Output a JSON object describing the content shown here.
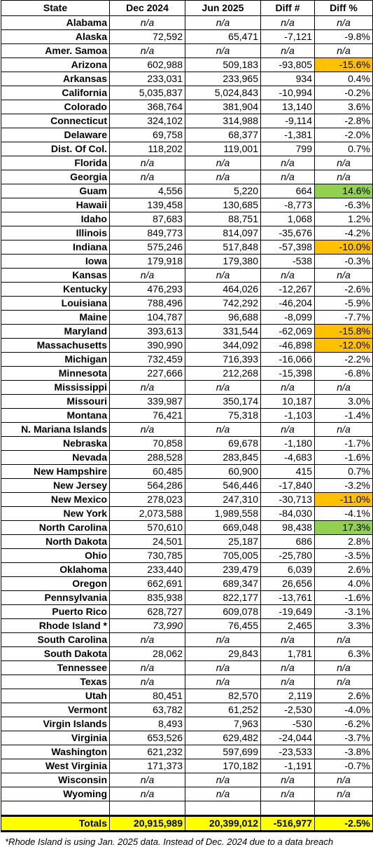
{
  "table": {
    "header": [
      "State",
      "Dec 2024",
      "Jun 2025",
      "Diff #",
      "Diff %"
    ],
    "rows": [
      [
        "Alabama",
        "n/a",
        "n/a",
        "n/a",
        "n/a"
      ],
      [
        "Alaska",
        "72,592",
        "65,471",
        "-7,121",
        "-9.8%"
      ],
      [
        "Amer. Samoa",
        "n/a",
        "n/a",
        "n/a",
        "n/a"
      ],
      [
        "Arizona",
        "602,988",
        "509,183",
        "-93,805",
        "-15.6%"
      ],
      [
        "Arkansas",
        "233,031",
        "233,965",
        "934",
        "0.4%"
      ],
      [
        "California",
        "5,035,837",
        "5,024,843",
        "-10,994",
        "-0.2%"
      ],
      [
        "Colorado",
        "368,764",
        "381,904",
        "13,140",
        "3.6%"
      ],
      [
        "Connecticut",
        "324,102",
        "314,988",
        "-9,114",
        "-2.8%"
      ],
      [
        "Delaware",
        "69,758",
        "68,377",
        "-1,381",
        "-2.0%"
      ],
      [
        "Dist. Of Col.",
        "118,202",
        "119,001",
        "799",
        "0.7%"
      ],
      [
        "Florida",
        "n/a",
        "n/a",
        "n/a",
        "n/a"
      ],
      [
        "Georgia",
        "n/a",
        "n/a",
        "n/a",
        "n/a"
      ],
      [
        "Guam",
        "4,556",
        "5,220",
        "664",
        "14.6%"
      ],
      [
        "Hawaii",
        "139,458",
        "130,685",
        "-8,773",
        "-6.3%"
      ],
      [
        "Idaho",
        "87,683",
        "88,751",
        "1,068",
        "1.2%"
      ],
      [
        "Illinois",
        "849,773",
        "814,097",
        "-35,676",
        "-4.2%"
      ],
      [
        "Indiana",
        "575,246",
        "517,848",
        "-57,398",
        "-10.0%"
      ],
      [
        "Iowa",
        "179,918",
        "179,380",
        "-538",
        "-0.3%"
      ],
      [
        "Kansas",
        "n/a",
        "n/a",
        "n/a",
        "n/a"
      ],
      [
        "Kentucky",
        "476,293",
        "464,026",
        "-12,267",
        "-2.6%"
      ],
      [
        "Louisiana",
        "788,496",
        "742,292",
        "-46,204",
        "-5.9%"
      ],
      [
        "Maine",
        "104,787",
        "96,688",
        "-8,099",
        "-7.7%"
      ],
      [
        "Maryland",
        "393,613",
        "331,544",
        "-62,069",
        "-15.8%"
      ],
      [
        "Massachusetts",
        "390,990",
        "344,092",
        "-46,898",
        "-12.0%"
      ],
      [
        "Michigan",
        "732,459",
        "716,393",
        "-16,066",
        "-2.2%"
      ],
      [
        "Minnesota",
        "227,666",
        "212,268",
        "-15,398",
        "-6.8%"
      ],
      [
        "Mississippi",
        "n/a",
        "n/a",
        "n/a",
        "n/a"
      ],
      [
        "Missouri",
        "339,987",
        "350,174",
        "10,187",
        "3.0%"
      ],
      [
        "Montana",
        "76,421",
        "75,318",
        "-1,103",
        "-1.4%"
      ],
      [
        "N. Mariana Islands",
        "n/a",
        "n/a",
        "n/a",
        "n/a"
      ],
      [
        "Nebraska",
        "70,858",
        "69,678",
        "-1,180",
        "-1.7%"
      ],
      [
        "Nevada",
        "288,528",
        "283,845",
        "-4,683",
        "-1.6%"
      ],
      [
        "New Hampshire",
        "60,485",
        "60,900",
        "415",
        "0.7%"
      ],
      [
        "New Jersey",
        "564,286",
        "546,446",
        "-17,840",
        "-3.2%"
      ],
      [
        "New Mexico",
        "278,023",
        "247,310",
        "-30,713",
        "-11.0%"
      ],
      [
        "New York",
        "2,073,588",
        "1,989,558",
        "-84,030",
        "-4.1%"
      ],
      [
        "North Carolina",
        "570,610",
        "669,048",
        "98,438",
        "17.3%"
      ],
      [
        "North Dakota",
        "24,501",
        "25,187",
        "686",
        "2.8%"
      ],
      [
        "Ohio",
        "730,785",
        "705,005",
        "-25,780",
        "-3.5%"
      ],
      [
        "Oklahoma",
        "233,440",
        "239,479",
        "6,039",
        "2.6%"
      ],
      [
        "Oregon",
        "662,691",
        "689,347",
        "26,656",
        "4.0%"
      ],
      [
        "Pennsylvania",
        "835,938",
        "822,177",
        "-13,761",
        "-1.6%"
      ],
      [
        "Puerto Rico",
        "628,727",
        "609,078",
        "-19,649",
        "-3.1%"
      ],
      [
        "Rhode Island *",
        "73,990",
        "76,455",
        "2,465",
        "3.3%"
      ],
      [
        "South Carolina",
        "n/a",
        "n/a",
        "n/a",
        "n/a"
      ],
      [
        "South Dakota",
        "28,062",
        "29,843",
        "1,781",
        "6.3%"
      ],
      [
        "Tennessee",
        "n/a",
        "n/a",
        "n/a",
        "n/a"
      ],
      [
        "Texas",
        "n/a",
        "n/a",
        "n/a",
        "n/a"
      ],
      [
        "Utah",
        "80,451",
        "82,570",
        "2,119",
        "2.6%"
      ],
      [
        "Vermont",
        "63,782",
        "61,252",
        "-2,530",
        "-4.0%"
      ],
      [
        "Virgin Islands",
        "8,493",
        "7,963",
        "-530",
        "-6.2%"
      ],
      [
        "Virginia",
        "653,526",
        "629,482",
        "-24,044",
        "-3.7%"
      ],
      [
        "Washington",
        "621,232",
        "597,699",
        "-23,533",
        "-3.8%"
      ],
      [
        "West Virginia",
        "171,373",
        "170,182",
        "-1,191",
        "-0.7%"
      ],
      [
        "Wisconsin",
        "n/a",
        "n/a",
        "n/a",
        "n/a"
      ],
      [
        "Wyoming",
        "n/a",
        "n/a",
        "n/a",
        "n/a"
      ]
    ],
    "totals": [
      "Totals",
      "20,915,989",
      "20,399,012",
      "-516,977",
      "-2.5%"
    ],
    "totals_fill": "#ffff00",
    "italic_values": [
      "n/a"
    ],
    "styles": [
      {
        "row": 3,
        "col": 4,
        "fill": "#ffc000"
      },
      {
        "row": 12,
        "col": 4,
        "fill": "#92d050"
      },
      {
        "row": 16,
        "col": 4,
        "fill": "#ffc000"
      },
      {
        "row": 22,
        "col": 4,
        "fill": "#ffc000"
      },
      {
        "row": 23,
        "col": 4,
        "fill": "#ffc000"
      },
      {
        "row": 34,
        "col": 4,
        "fill": "#ffc000"
      },
      {
        "row": 36,
        "col": 4,
        "fill": "#92d050"
      },
      {
        "row": 43,
        "col": 1,
        "italic": true
      }
    ]
  },
  "footnote": "*Rhode Island is using Jan. 2025 data. Instead of Dec. 2024 due to a data breach"
}
